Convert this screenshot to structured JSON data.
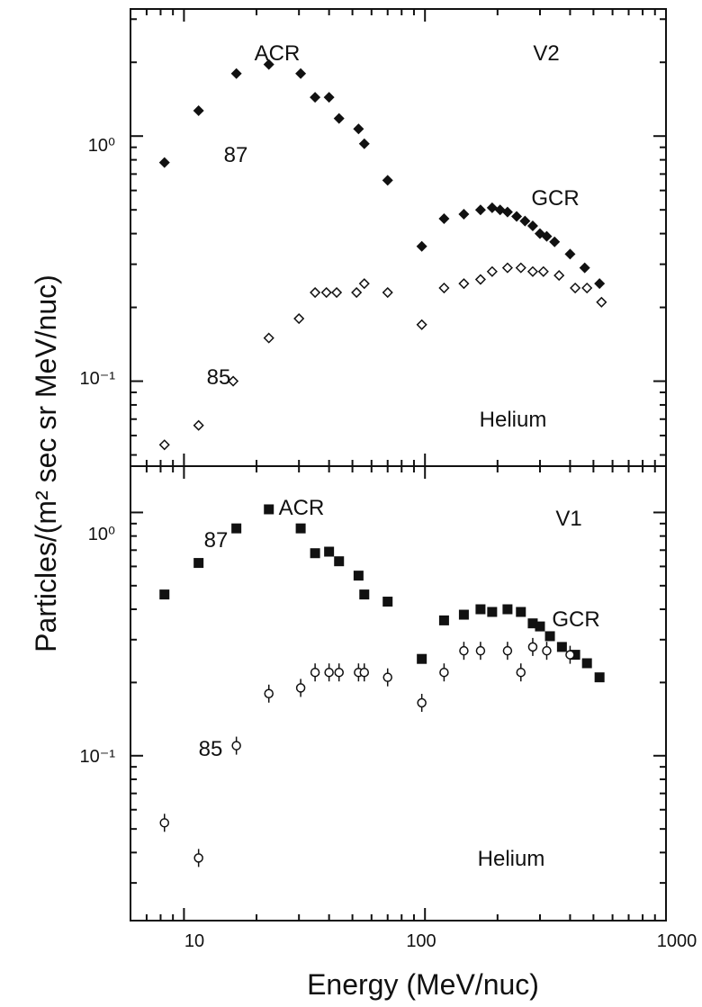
{
  "figure": {
    "xlabel": "Energy (MeV/nuc)",
    "ylabel": "Particles/(m² sec sr MeV/nuc)",
    "x_tick_labels": [
      "10",
      "100",
      "1000"
    ],
    "y_tick_labels_top": [
      "10⁰",
      "10⁻¹"
    ],
    "y_tick_labels_bottom": [
      "10⁰",
      "10⁻¹"
    ]
  },
  "chart_data": [
    {
      "type": "scatter",
      "panel": "top",
      "xscale": "log",
      "yscale": "log",
      "xlim": [
        6,
        1000
      ],
      "ylim": [
        0.045,
        3.3
      ],
      "labels": {
        "acr": "ACR",
        "gcr": "GCR",
        "spacecraft": "V2",
        "species": "Helium"
      },
      "series": [
        {
          "name": "87",
          "marker": "filled-diamond",
          "points": [
            [
              8.3,
              0.78
            ],
            [
              11.5,
              1.27
            ],
            [
              16.5,
              1.8
            ],
            [
              22.5,
              1.96
            ],
            [
              30.5,
              1.8
            ],
            [
              35,
              1.44
            ],
            [
              40,
              1.44
            ],
            [
              44,
              1.18
            ],
            [
              53,
              1.07
            ],
            [
              56,
              0.93
            ],
            [
              70,
              0.66
            ],
            [
              97,
              0.355
            ],
            [
              120,
              0.46
            ],
            [
              145,
              0.48
            ],
            [
              170,
              0.5
            ],
            [
              190,
              0.51
            ],
            [
              205,
              0.5
            ],
            [
              220,
              0.49
            ],
            [
              240,
              0.47
            ],
            [
              260,
              0.45
            ],
            [
              280,
              0.43
            ],
            [
              300,
              0.4
            ],
            [
              320,
              0.39
            ],
            [
              345,
              0.37
            ],
            [
              400,
              0.33
            ],
            [
              460,
              0.29
            ],
            [
              530,
              0.25
            ]
          ]
        },
        {
          "name": "85",
          "marker": "open-diamond",
          "points": [
            [
              8.3,
              0.055
            ],
            [
              11.5,
              0.066
            ],
            [
              16,
              0.1
            ],
            [
              22.5,
              0.15
            ],
            [
              30,
              0.18
            ],
            [
              35,
              0.23
            ],
            [
              39,
              0.23
            ],
            [
              43,
              0.23
            ],
            [
              52,
              0.23
            ],
            [
              56,
              0.25
            ],
            [
              70,
              0.23
            ],
            [
              97,
              0.17
            ],
            [
              120,
              0.24
            ],
            [
              145,
              0.25
            ],
            [
              170,
              0.26
            ],
            [
              190,
              0.28
            ],
            [
              220,
              0.29
            ],
            [
              250,
              0.29
            ],
            [
              280,
              0.28
            ],
            [
              310,
              0.28
            ],
            [
              360,
              0.27
            ],
            [
              420,
              0.24
            ],
            [
              470,
              0.24
            ],
            [
              540,
              0.21
            ]
          ]
        }
      ]
    },
    {
      "type": "scatter",
      "panel": "bottom",
      "xscale": "log",
      "yscale": "log",
      "xlim": [
        6,
        1000
      ],
      "ylim": [
        0.021,
        1.55
      ],
      "labels": {
        "acr": "ACR",
        "gcr": "GCR",
        "spacecraft": "V1",
        "species": "Helium"
      },
      "series": [
        {
          "name": "87",
          "marker": "filled-square",
          "points": [
            [
              8.3,
              0.46
            ],
            [
              11.5,
              0.62
            ],
            [
              16.5,
              0.86
            ],
            [
              22.5,
              1.03
            ],
            [
              30.5,
              0.86
            ],
            [
              35,
              0.68
            ],
            [
              40,
              0.69
            ],
            [
              44,
              0.63
            ],
            [
              53,
              0.55
            ],
            [
              56,
              0.46
            ],
            [
              70,
              0.43
            ],
            [
              97,
              0.25
            ],
            [
              120,
              0.36
            ],
            [
              145,
              0.38
            ],
            [
              170,
              0.4
            ],
            [
              190,
              0.39
            ],
            [
              220,
              0.4
            ],
            [
              250,
              0.39
            ],
            [
              280,
              0.35
            ],
            [
              300,
              0.34
            ],
            [
              330,
              0.31
            ],
            [
              370,
              0.28
            ],
            [
              420,
              0.26
            ],
            [
              470,
              0.24
            ],
            [
              530,
              0.21
            ]
          ]
        },
        {
          "name": "85",
          "marker": "open-circle-errorbar",
          "points": [
            [
              8.3,
              0.053
            ],
            [
              11.5,
              0.038
            ],
            [
              16.5,
              0.11
            ],
            [
              22.5,
              0.18
            ],
            [
              30.5,
              0.19
            ],
            [
              35,
              0.22
            ],
            [
              40,
              0.22
            ],
            [
              44,
              0.22
            ],
            [
              53,
              0.22
            ],
            [
              56,
              0.22
            ],
            [
              70,
              0.21
            ],
            [
              97,
              0.165
            ],
            [
              120,
              0.22
            ],
            [
              145,
              0.27
            ],
            [
              170,
              0.27
            ],
            [
              220,
              0.27
            ],
            [
              250,
              0.22
            ],
            [
              280,
              0.28
            ],
            [
              320,
              0.27
            ],
            [
              400,
              0.26
            ]
          ]
        }
      ]
    }
  ]
}
